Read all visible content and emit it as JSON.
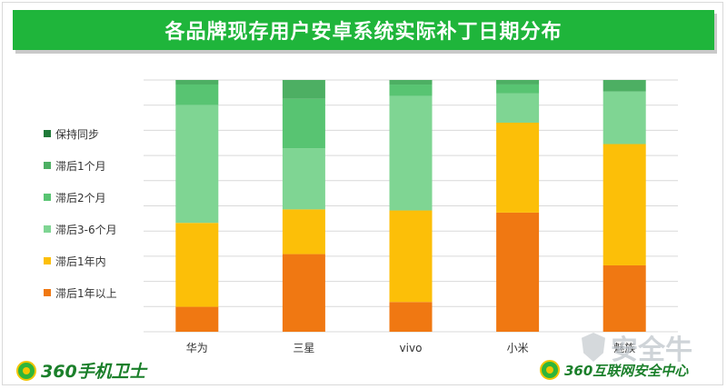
{
  "title": "各品牌现存用户安卓系统实际补丁日期分布",
  "logos": {
    "left_text": "360手机卫士",
    "right_text": "360互联网安全中心"
  },
  "watermark": "安全牛",
  "colors": {
    "title_bg": "#1fb53b"
  },
  "chart_data": {
    "type": "bar",
    "stacked": true,
    "normalized": true,
    "categories": [
      "华为",
      "三星",
      "vivo",
      "小米",
      "魅族"
    ],
    "series": [
      {
        "name": "滞后1年以上",
        "color": "#f07812",
        "values": [
          0.11,
          0.33,
          0.13,
          0.53,
          0.29
        ]
      },
      {
        "name": "滞后1年内",
        "color": "#fcbf08",
        "values": [
          0.37,
          0.19,
          0.4,
          0.4,
          0.53
        ]
      },
      {
        "name": "滞后3-6个月",
        "color": "#7fd593",
        "values": [
          0.52,
          0.26,
          0.5,
          0.13,
          0.23
        ]
      },
      {
        "name": "滞后2个月",
        "color": "#58c472",
        "values": [
          0.09,
          0.21,
          0.05,
          0.04,
          0.0
        ]
      },
      {
        "name": "滞后1个月",
        "color": "#4daf63",
        "values": [
          0.02,
          0.08,
          0.02,
          0.02,
          0.05
        ]
      },
      {
        "name": "保持同步",
        "color": "#1f7a38",
        "values": [
          0.0,
          0.0,
          0.0,
          0.0,
          0.0
        ]
      }
    ],
    "legend_order": [
      "保持同步",
      "滞后1个月",
      "滞后2个月",
      "滞后3-6个月",
      "滞后1年内",
      "滞后1年以上"
    ],
    "ylim": [
      0,
      1
    ],
    "grid": true,
    "legend_position": "left"
  }
}
